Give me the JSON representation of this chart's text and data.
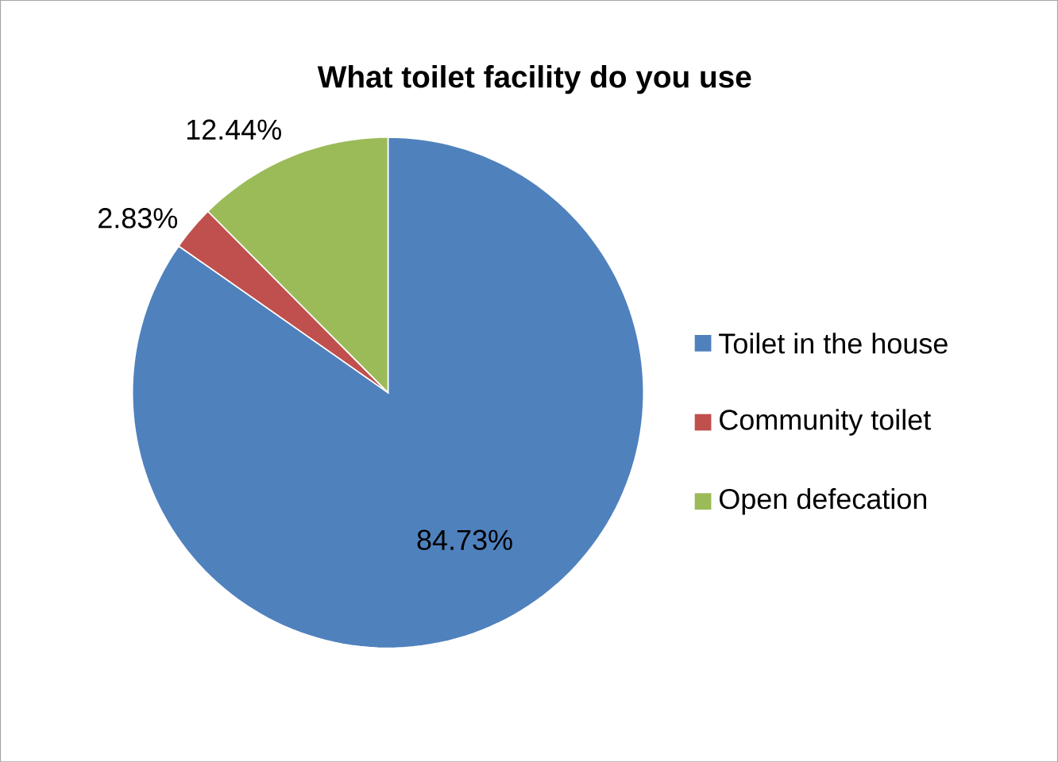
{
  "chart_data": {
    "type": "pie",
    "title": "What toilet facility do you use",
    "categories": [
      "Toilet in the house",
      "Community toilet",
      "Open defecation"
    ],
    "values": [
      84.73,
      2.83,
      12.44
    ],
    "colors": [
      "#4f81bd",
      "#c0504d",
      "#9bbb59"
    ],
    "value_labels": [
      "84.73%",
      "2.83%",
      "12.44%"
    ],
    "legend": "right"
  }
}
